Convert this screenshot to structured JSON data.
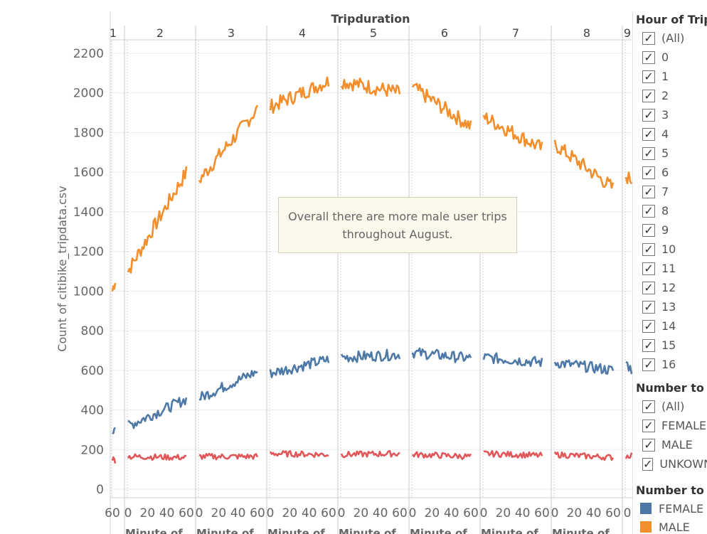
{
  "chart_data": {
    "type": "line",
    "title": "Tripduration",
    "ylabel": "Count of citibike_tripdata.csv",
    "xlabel": "Minute of ...",
    "ylim": [
      0,
      2200
    ],
    "yticks": [
      0,
      200,
      400,
      600,
      800,
      1000,
      1200,
      1400,
      1600,
      1800,
      2000,
      2200
    ],
    "xticks": [
      "0",
      "20",
      "40",
      "60"
    ],
    "panels": [
      "1",
      "2",
      "3",
      "4",
      "5",
      "6",
      "7",
      "8",
      "9"
    ],
    "series": [
      {
        "name": "MALE",
        "color": "#f28e2b",
        "segments": [
          {
            "panel": "1",
            "start": 1000,
            "end": 1060
          },
          {
            "panel": "2",
            "start": 1100,
            "end": 1600
          },
          {
            "panel": "3",
            "start": 1560,
            "end": 1920
          },
          {
            "panel": "4",
            "start": 1930,
            "end": 2060
          },
          {
            "panel": "5",
            "start": 2060,
            "end": 2000
          },
          {
            "panel": "6",
            "start": 2030,
            "end": 1830
          },
          {
            "panel": "7",
            "start": 1880,
            "end": 1720
          },
          {
            "panel": "8",
            "start": 1740,
            "end": 1520
          },
          {
            "panel": "9",
            "start": 1580,
            "end": 1560
          }
        ]
      },
      {
        "name": "FEMALE",
        "color": "#4e79a7",
        "segments": [
          {
            "panel": "1",
            "start": 300,
            "end": 320
          },
          {
            "panel": "2",
            "start": 320,
            "end": 455
          },
          {
            "panel": "3",
            "start": 460,
            "end": 595
          },
          {
            "panel": "4",
            "start": 585,
            "end": 655
          },
          {
            "panel": "5",
            "start": 665,
            "end": 680
          },
          {
            "panel": "6",
            "start": 690,
            "end": 660
          },
          {
            "panel": "7",
            "start": 665,
            "end": 640
          },
          {
            "panel": "8",
            "start": 640,
            "end": 600
          },
          {
            "panel": "9",
            "start": 640,
            "end": 600
          }
        ]
      },
      {
        "name": "UNKOWN",
        "color": "#e15759",
        "segments": [
          {
            "panel": "1",
            "start": 155,
            "end": 145
          },
          {
            "panel": "2",
            "start": 165,
            "end": 160
          },
          {
            "panel": "3",
            "start": 165,
            "end": 165
          },
          {
            "panel": "4",
            "start": 180,
            "end": 175
          },
          {
            "panel": "5",
            "start": 175,
            "end": 180
          },
          {
            "panel": "6",
            "start": 175,
            "end": 165
          },
          {
            "panel": "7",
            "start": 180,
            "end": 170
          },
          {
            "panel": "8",
            "start": 175,
            "end": 160
          },
          {
            "panel": "9",
            "start": 165,
            "end": 175
          }
        ]
      }
    ],
    "annotation": "Overall there are more male user trips throughout August."
  },
  "filters": {
    "hour_title": "Hour of Trip",
    "hour_items": [
      "(All)",
      "0",
      "1",
      "2",
      "3",
      "4",
      "5",
      "6",
      "7",
      "8",
      "9",
      "10",
      "11",
      "12",
      "13",
      "14",
      "15",
      "16"
    ],
    "gender_title": "Number to S",
    "gender_items": [
      "(All)",
      "FEMALE",
      "MALE",
      "UNKOWN"
    ]
  },
  "legend": {
    "title": "Number to S",
    "items": [
      {
        "label": "FEMALE",
        "color": "#4e79a7"
      },
      {
        "label": "MALE",
        "color": "#f28e2b"
      }
    ]
  }
}
